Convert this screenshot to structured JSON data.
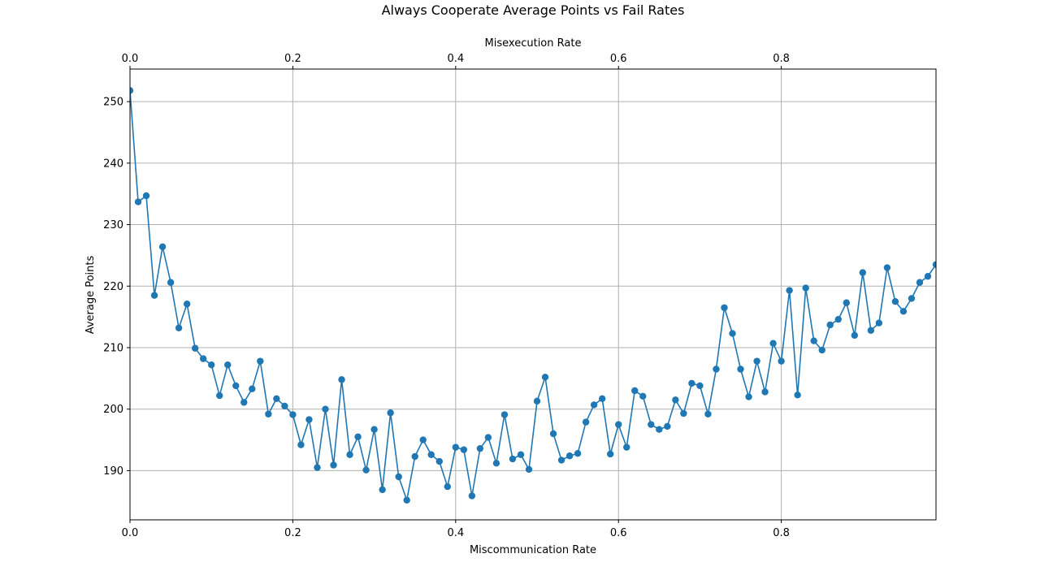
{
  "chart_data": {
    "type": "line",
    "title": "Always Cooperate Average Points vs Fail Rates",
    "xlabel": "Miscommunication Rate",
    "x2label": "Misexecution Rate",
    "ylabel": "Average Points",
    "xlim": [
      0,
      0.99
    ],
    "ylim": [
      182,
      255.3
    ],
    "xticks": [
      0.0,
      0.2,
      0.4,
      0.6,
      0.8
    ],
    "xtick_labels": [
      "0.0",
      "0.2",
      "0.4",
      "0.6",
      "0.8"
    ],
    "yticks": [
      190,
      200,
      210,
      220,
      230,
      240,
      250
    ],
    "ytick_labels": [
      "190",
      "200",
      "210",
      "220",
      "230",
      "240",
      "250"
    ],
    "grid": true,
    "series": [
      {
        "color": "#1f77b4",
        "marker": "circle",
        "x": [
          0.0,
          0.01,
          0.02,
          0.03,
          0.04,
          0.05,
          0.06,
          0.07,
          0.08,
          0.09,
          0.1,
          0.11,
          0.12,
          0.13,
          0.14,
          0.15,
          0.16,
          0.17,
          0.18,
          0.19,
          0.2,
          0.21,
          0.22,
          0.23,
          0.24,
          0.25,
          0.26,
          0.27,
          0.28,
          0.29,
          0.3,
          0.31,
          0.32,
          0.33,
          0.34,
          0.35,
          0.36,
          0.37,
          0.38,
          0.39,
          0.4,
          0.41,
          0.42,
          0.43,
          0.44,
          0.45,
          0.46,
          0.47,
          0.48,
          0.49,
          0.5,
          0.51,
          0.52,
          0.53,
          0.54,
          0.55,
          0.56,
          0.57,
          0.58,
          0.59,
          0.6,
          0.61,
          0.62,
          0.63,
          0.64,
          0.65,
          0.66,
          0.67,
          0.68,
          0.69,
          0.7,
          0.71,
          0.72,
          0.73,
          0.74,
          0.75,
          0.76,
          0.77,
          0.78,
          0.79,
          0.8,
          0.81,
          0.82,
          0.83,
          0.84,
          0.85,
          0.86,
          0.87,
          0.88,
          0.89,
          0.9,
          0.91,
          0.92,
          0.93,
          0.94,
          0.95,
          0.96,
          0.97,
          0.98,
          0.99
        ],
        "y": [
          251.8,
          233.7,
          234.7,
          218.5,
          226.4,
          220.6,
          213.2,
          217.1,
          209.9,
          208.2,
          207.2,
          202.2,
          207.2,
          203.8,
          201.1,
          203.3,
          207.8,
          199.2,
          201.7,
          200.5,
          199.1,
          194.2,
          198.3,
          190.5,
          200.0,
          190.9,
          204.8,
          192.6,
          195.5,
          190.1,
          196.7,
          186.9,
          199.4,
          189.0,
          185.2,
          192.3,
          195.0,
          192.6,
          191.5,
          187.4,
          193.8,
          193.4,
          185.9,
          193.6,
          195.4,
          191.2,
          199.1,
          191.9,
          192.6,
          190.2,
          201.3,
          205.2,
          196.0,
          191.7,
          192.4,
          192.8,
          197.9,
          200.7,
          201.7,
          192.7,
          197.5,
          193.8,
          203.0,
          202.1,
          197.5,
          196.7,
          197.2,
          201.5,
          199.3,
          204.2,
          203.8,
          199.2,
          206.5,
          216.5,
          212.3,
          206.5,
          202.0,
          207.8,
          202.8,
          210.7,
          207.8,
          219.3,
          202.3,
          219.7,
          211.1,
          209.6,
          213.7,
          214.6,
          217.3,
          212.0,
          222.2,
          212.8,
          214.0,
          223.0,
          217.5,
          215.9,
          218.0,
          220.6,
          221.6,
          223.5
        ]
      }
    ]
  }
}
